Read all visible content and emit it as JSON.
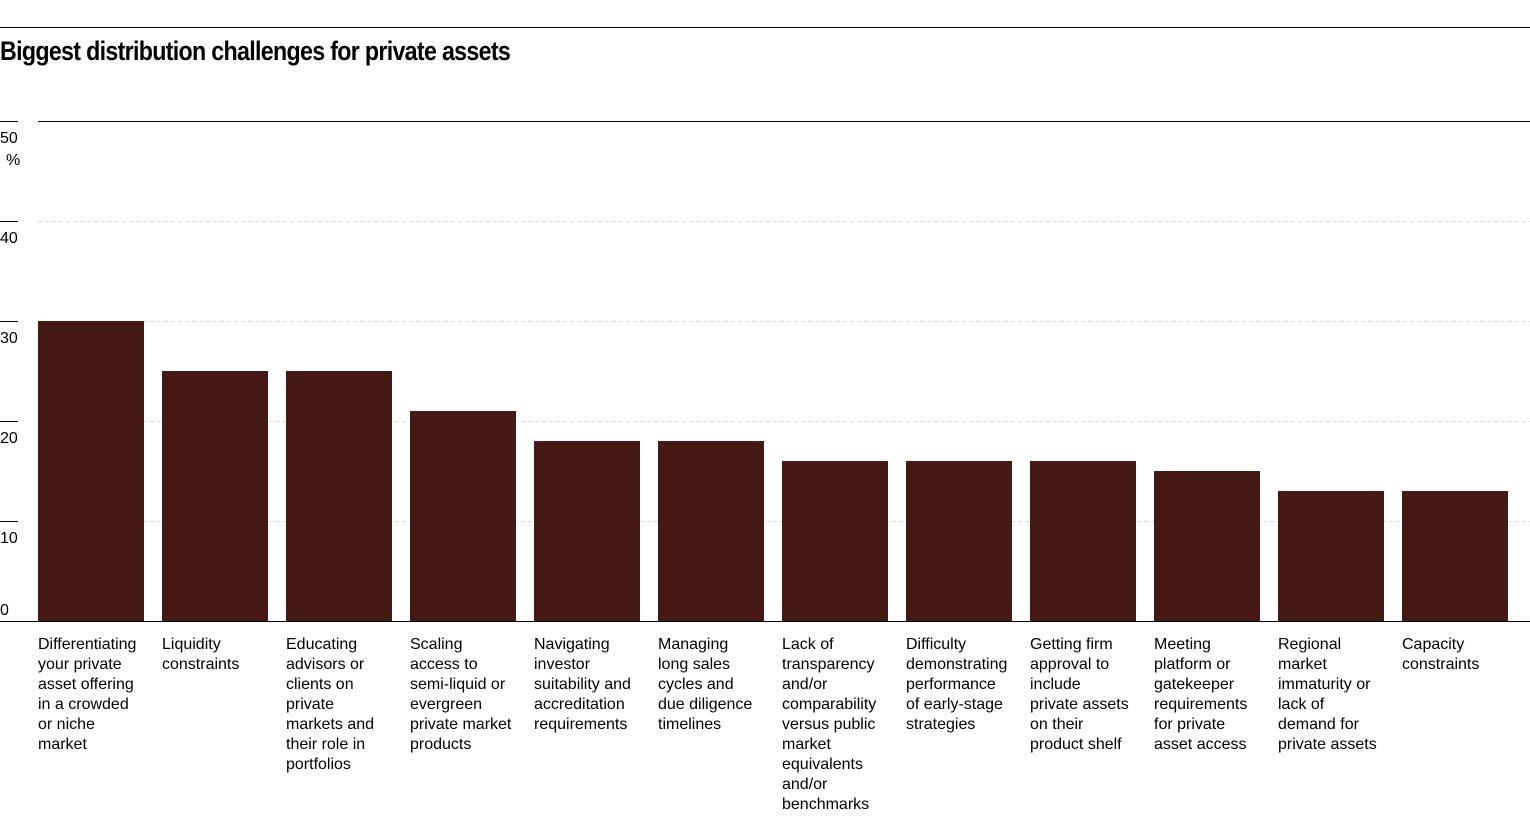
{
  "page": {
    "title": "Biggest distribution challenges for private assets"
  },
  "chart_data": {
    "type": "bar",
    "title": "Biggest distribution challenges for private assets",
    "xlabel": "",
    "ylabel": "",
    "y_unit": "%",
    "ylim": [
      0,
      50
    ],
    "yticks": [
      0,
      10,
      20,
      30,
      40,
      50
    ],
    "grid": true,
    "bar_color": "#451914",
    "categories": [
      "Differentiating your private asset offering in a crowded or niche market",
      "Liquidity constraints",
      "Educating advisors or clients on private markets and their role in portfolios",
      "Scaling access to semi-liquid or evergreen private market products",
      "Navigating investor suitability and accreditation requirements",
      "Managing long sales cycles and due diligence timelines",
      "Lack of transparency and/or comparability versus public market equivalents and/or benchmarks",
      "Difficulty demonstrating performance of early-stage strategies",
      "Getting firm approval to include private assets on their product shelf",
      "Meeting platform or gatekeeper requirements for private asset access",
      "Regional market immaturity or lack of demand for private assets",
      "Capacity constraints"
    ],
    "category_lines": [
      [
        "Differentiating",
        "your private",
        "asset offering",
        "in a crowded",
        "or niche",
        "market"
      ],
      [
        "Liquidity",
        "constraints"
      ],
      [
        "Educating",
        "advisors or",
        "clients on",
        "private",
        "markets and",
        "their role in",
        "portfolios"
      ],
      [
        "Scaling",
        "access to",
        "semi-liquid or",
        "evergreen",
        "private market",
        "products"
      ],
      [
        "Navigating",
        "investor",
        "suitability and",
        "accreditation",
        "requirements"
      ],
      [
        "Managing",
        "long sales",
        "cycles and",
        "due diligence",
        "timelines"
      ],
      [
        "Lack of",
        "transparency",
        "and/or",
        "comparability",
        "versus public",
        "market",
        "equivalents",
        "and/or",
        "benchmarks"
      ],
      [
        "Difficulty",
        "demonstrating",
        "performance",
        "of early-stage",
        "strategies"
      ],
      [
        "Getting firm",
        "approval to",
        "include",
        "private assets",
        "on their",
        "product shelf"
      ],
      [
        "Meeting",
        "platform or",
        "gatekeeper",
        "requirements",
        "for private",
        "asset access"
      ],
      [
        "Regional",
        "market",
        "immaturity or",
        "lack of",
        "demand for",
        "private assets"
      ],
      [
        "Capacity",
        "constraints"
      ]
    ],
    "values": [
      30,
      25,
      25,
      21,
      18,
      18,
      16,
      16,
      16,
      15,
      13,
      13
    ]
  }
}
